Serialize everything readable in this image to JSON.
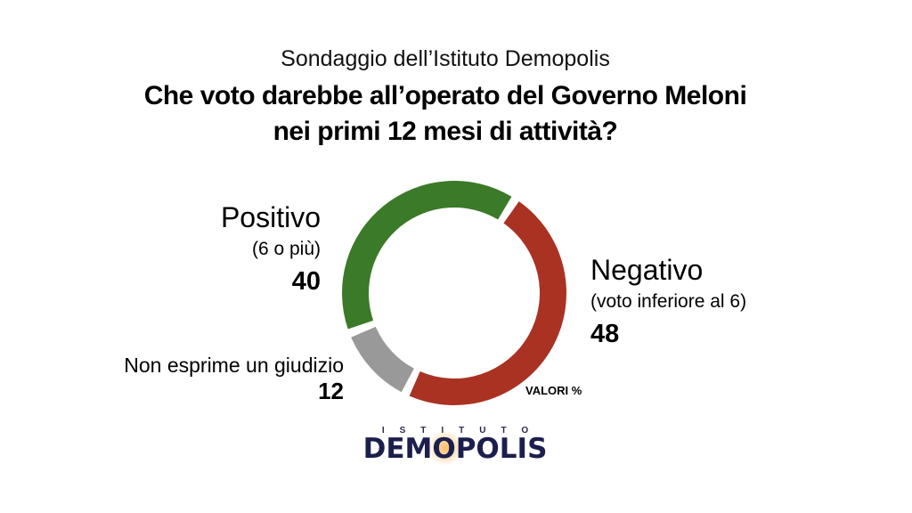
{
  "header": {
    "source": "Sondaggio dell’Istituto Demopolis",
    "question_line1": "Che voto darebbe all’operato del Governo Meloni",
    "question_line2": "nei primi 12 mesi di attività?"
  },
  "chart_data": {
    "type": "pie",
    "donut": true,
    "unit_note": "VALORI %",
    "slices": [
      {
        "label": "Positivo",
        "sublabel": "(6 o più)",
        "value": 40,
        "color": "#3b7a28"
      },
      {
        "label": "Negativo",
        "sublabel": "(voto inferiore al 6)",
        "value": 48,
        "color": "#a93222"
      },
      {
        "label": "Non esprime un giudizio",
        "sublabel": "",
        "value": 12,
        "color": "#999999"
      }
    ]
  },
  "labels": {
    "positivo": {
      "title": "Positivo",
      "sub": "(6 o più)",
      "value": "40"
    },
    "negativo": {
      "title": "Negativo",
      "sub": "(voto inferiore al 6)",
      "value": "48"
    },
    "nongiudizio": {
      "title": "Non esprime un giudizio",
      "value": "12"
    }
  },
  "logo": {
    "top": "ISTITUTO",
    "main": "DEMOPOLIS"
  }
}
